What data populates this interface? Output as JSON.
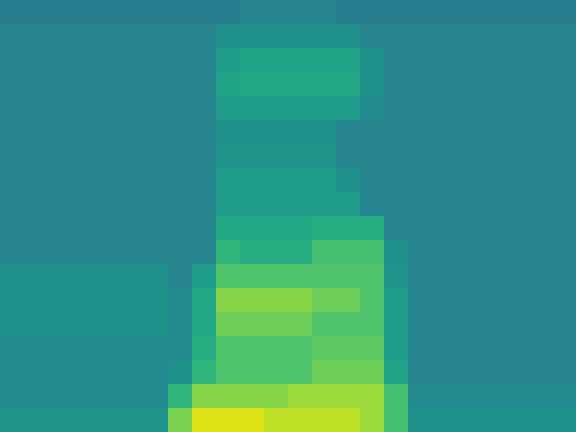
{
  "chart_data": {
    "type": "heatmap",
    "color": "viridis",
    "zlim": [
      0,
      1
    ],
    "tick_labels": false,
    "cells": [
      [
        0.42,
        0.42,
        0.42,
        0.42,
        0.42,
        0.42,
        0.42,
        0.42,
        0.42,
        0.42,
        0.45,
        0.45,
        0.45,
        0.45,
        0.42,
        0.42,
        0.42,
        0.42,
        0.42,
        0.42,
        0.42,
        0.42,
        0.42,
        0.42
      ],
      [
        0.45,
        0.45,
        0.45,
        0.45,
        0.45,
        0.45,
        0.45,
        0.45,
        0.45,
        0.5,
        0.5,
        0.5,
        0.5,
        0.5,
        0.5,
        0.45,
        0.45,
        0.45,
        0.45,
        0.45,
        0.45,
        0.45,
        0.45,
        0.45
      ],
      [
        0.45,
        0.45,
        0.45,
        0.45,
        0.45,
        0.45,
        0.45,
        0.45,
        0.45,
        0.55,
        0.58,
        0.58,
        0.58,
        0.58,
        0.58,
        0.5,
        0.45,
        0.45,
        0.45,
        0.45,
        0.45,
        0.45,
        0.45,
        0.45
      ],
      [
        0.45,
        0.45,
        0.45,
        0.45,
        0.45,
        0.45,
        0.45,
        0.45,
        0.45,
        0.58,
        0.6,
        0.6,
        0.6,
        0.6,
        0.6,
        0.5,
        0.45,
        0.45,
        0.45,
        0.45,
        0.45,
        0.45,
        0.45,
        0.45
      ],
      [
        0.45,
        0.45,
        0.45,
        0.45,
        0.45,
        0.45,
        0.45,
        0.45,
        0.45,
        0.55,
        0.55,
        0.55,
        0.55,
        0.55,
        0.55,
        0.48,
        0.45,
        0.45,
        0.45,
        0.45,
        0.45,
        0.45,
        0.45,
        0.45
      ],
      [
        0.45,
        0.45,
        0.45,
        0.45,
        0.45,
        0.45,
        0.45,
        0.45,
        0.45,
        0.5,
        0.5,
        0.5,
        0.5,
        0.5,
        0.45,
        0.45,
        0.45,
        0.45,
        0.45,
        0.45,
        0.45,
        0.45,
        0.45,
        0.45
      ],
      [
        0.45,
        0.45,
        0.45,
        0.45,
        0.45,
        0.45,
        0.45,
        0.45,
        0.45,
        0.52,
        0.52,
        0.52,
        0.52,
        0.52,
        0.45,
        0.45,
        0.45,
        0.45,
        0.45,
        0.45,
        0.45,
        0.45,
        0.45,
        0.45
      ],
      [
        0.45,
        0.45,
        0.45,
        0.45,
        0.45,
        0.45,
        0.45,
        0.45,
        0.45,
        0.55,
        0.55,
        0.55,
        0.55,
        0.55,
        0.5,
        0.45,
        0.45,
        0.45,
        0.45,
        0.45,
        0.45,
        0.45,
        0.45,
        0.45
      ],
      [
        0.45,
        0.45,
        0.45,
        0.45,
        0.45,
        0.45,
        0.45,
        0.45,
        0.45,
        0.55,
        0.55,
        0.55,
        0.55,
        0.55,
        0.55,
        0.45,
        0.45,
        0.45,
        0.45,
        0.45,
        0.45,
        0.45,
        0.45,
        0.45
      ],
      [
        0.45,
        0.45,
        0.45,
        0.45,
        0.45,
        0.45,
        0.45,
        0.45,
        0.45,
        0.6,
        0.6,
        0.6,
        0.6,
        0.62,
        0.62,
        0.62,
        0.45,
        0.45,
        0.45,
        0.45,
        0.45,
        0.45,
        0.45,
        0.45
      ],
      [
        0.45,
        0.45,
        0.45,
        0.45,
        0.45,
        0.45,
        0.45,
        0.45,
        0.45,
        0.65,
        0.62,
        0.62,
        0.62,
        0.7,
        0.7,
        0.7,
        0.5,
        0.45,
        0.45,
        0.45,
        0.45,
        0.45,
        0.45,
        0.45
      ],
      [
        0.5,
        0.5,
        0.5,
        0.5,
        0.5,
        0.5,
        0.5,
        0.45,
        0.55,
        0.72,
        0.72,
        0.72,
        0.72,
        0.72,
        0.72,
        0.72,
        0.52,
        0.45,
        0.45,
        0.45,
        0.45,
        0.45,
        0.45,
        0.45
      ],
      [
        0.5,
        0.5,
        0.5,
        0.5,
        0.5,
        0.5,
        0.5,
        0.48,
        0.6,
        0.82,
        0.82,
        0.82,
        0.82,
        0.78,
        0.78,
        0.72,
        0.55,
        0.45,
        0.45,
        0.45,
        0.45,
        0.45,
        0.45,
        0.45
      ],
      [
        0.5,
        0.5,
        0.5,
        0.5,
        0.5,
        0.5,
        0.5,
        0.48,
        0.6,
        0.78,
        0.78,
        0.78,
        0.78,
        0.72,
        0.72,
        0.72,
        0.55,
        0.45,
        0.45,
        0.45,
        0.45,
        0.45,
        0.45,
        0.45
      ],
      [
        0.48,
        0.48,
        0.48,
        0.48,
        0.48,
        0.48,
        0.48,
        0.48,
        0.62,
        0.72,
        0.72,
        0.72,
        0.72,
        0.75,
        0.75,
        0.75,
        0.55,
        0.45,
        0.45,
        0.45,
        0.45,
        0.45,
        0.45,
        0.45
      ],
      [
        0.47,
        0.47,
        0.47,
        0.47,
        0.47,
        0.47,
        0.47,
        0.5,
        0.65,
        0.72,
        0.72,
        0.72,
        0.72,
        0.78,
        0.78,
        0.78,
        0.58,
        0.45,
        0.45,
        0.45,
        0.45,
        0.45,
        0.45,
        0.45
      ],
      [
        0.48,
        0.48,
        0.48,
        0.48,
        0.48,
        0.48,
        0.48,
        0.65,
        0.82,
        0.82,
        0.82,
        0.82,
        0.85,
        0.85,
        0.85,
        0.85,
        0.7,
        0.47,
        0.47,
        0.47,
        0.47,
        0.47,
        0.47,
        0.47
      ],
      [
        0.52,
        0.52,
        0.52,
        0.52,
        0.52,
        0.52,
        0.52,
        0.8,
        0.95,
        0.95,
        0.95,
        0.9,
        0.9,
        0.9,
        0.9,
        0.85,
        0.7,
        0.5,
        0.5,
        0.5,
        0.5,
        0.5,
        0.5,
        0.5
      ]
    ]
  }
}
